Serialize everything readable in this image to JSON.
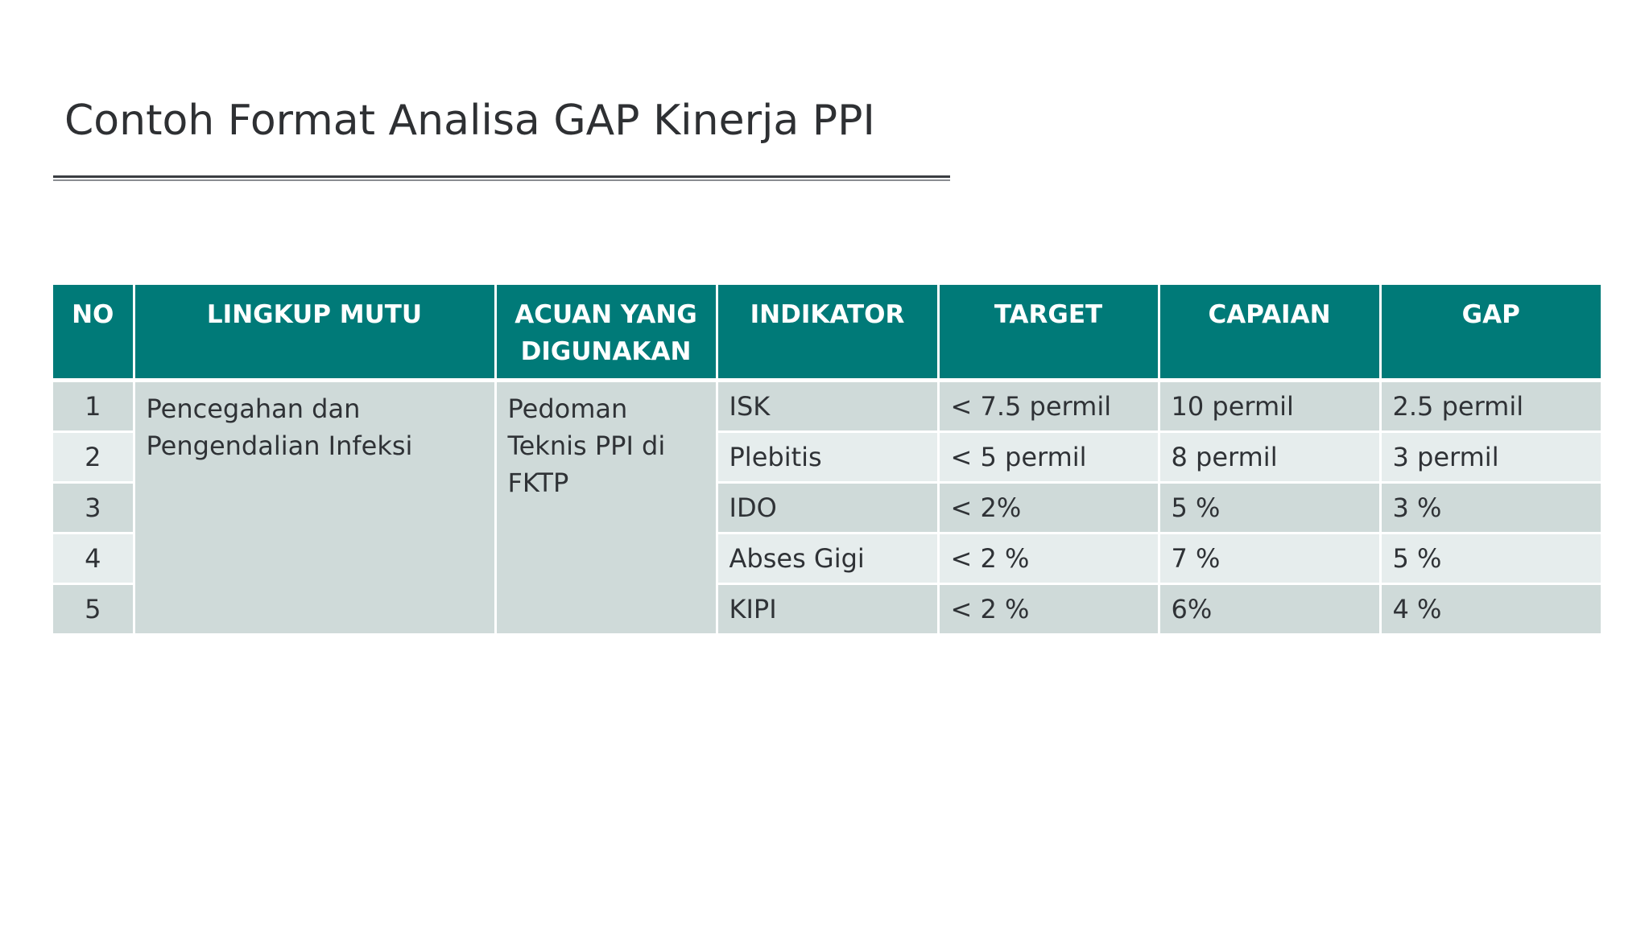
{
  "slide": {
    "title": "Contoh Format Analisa GAP Kinerja PPI"
  },
  "table": {
    "headers": {
      "no": "NO",
      "lingkup": "LINGKUP MUTU",
      "acuan": "ACUAN YANG DIGUNAKAN",
      "indikator": "INDIKATOR",
      "target": "TARGET",
      "capaian": "CAPAIAN",
      "gap": "GAP"
    },
    "lingkup_mutu": "Pencegahan dan Pengendalian Infeksi",
    "acuan": "Pedoman Teknis PPI di FKTP",
    "rows": [
      {
        "no": "1",
        "indikator": "ISK",
        "target": "< 7.5 permil",
        "capaian": "10 permil",
        "gap": "2.5 permil"
      },
      {
        "no": "2",
        "indikator": "Plebitis",
        "target": "< 5 permil",
        "capaian": "8 permil",
        "gap": "3 permil"
      },
      {
        "no": "3",
        "indikator": "IDO",
        "target": "< 2%",
        "capaian": "5 %",
        "gap": "3 %"
      },
      {
        "no": "4",
        "indikator": "Abses Gigi",
        "target": "< 2 %",
        "capaian": "7 %",
        "gap": "5 %"
      },
      {
        "no": "5",
        "indikator": "KIPI",
        "target": "< 2 %",
        "capaian": "6%",
        "gap": "4 %"
      }
    ]
  },
  "colors": {
    "header_bg": "#007a78",
    "row_dark": "#cfdad9",
    "row_light": "#e6eded",
    "title_text": "#2e3033"
  }
}
